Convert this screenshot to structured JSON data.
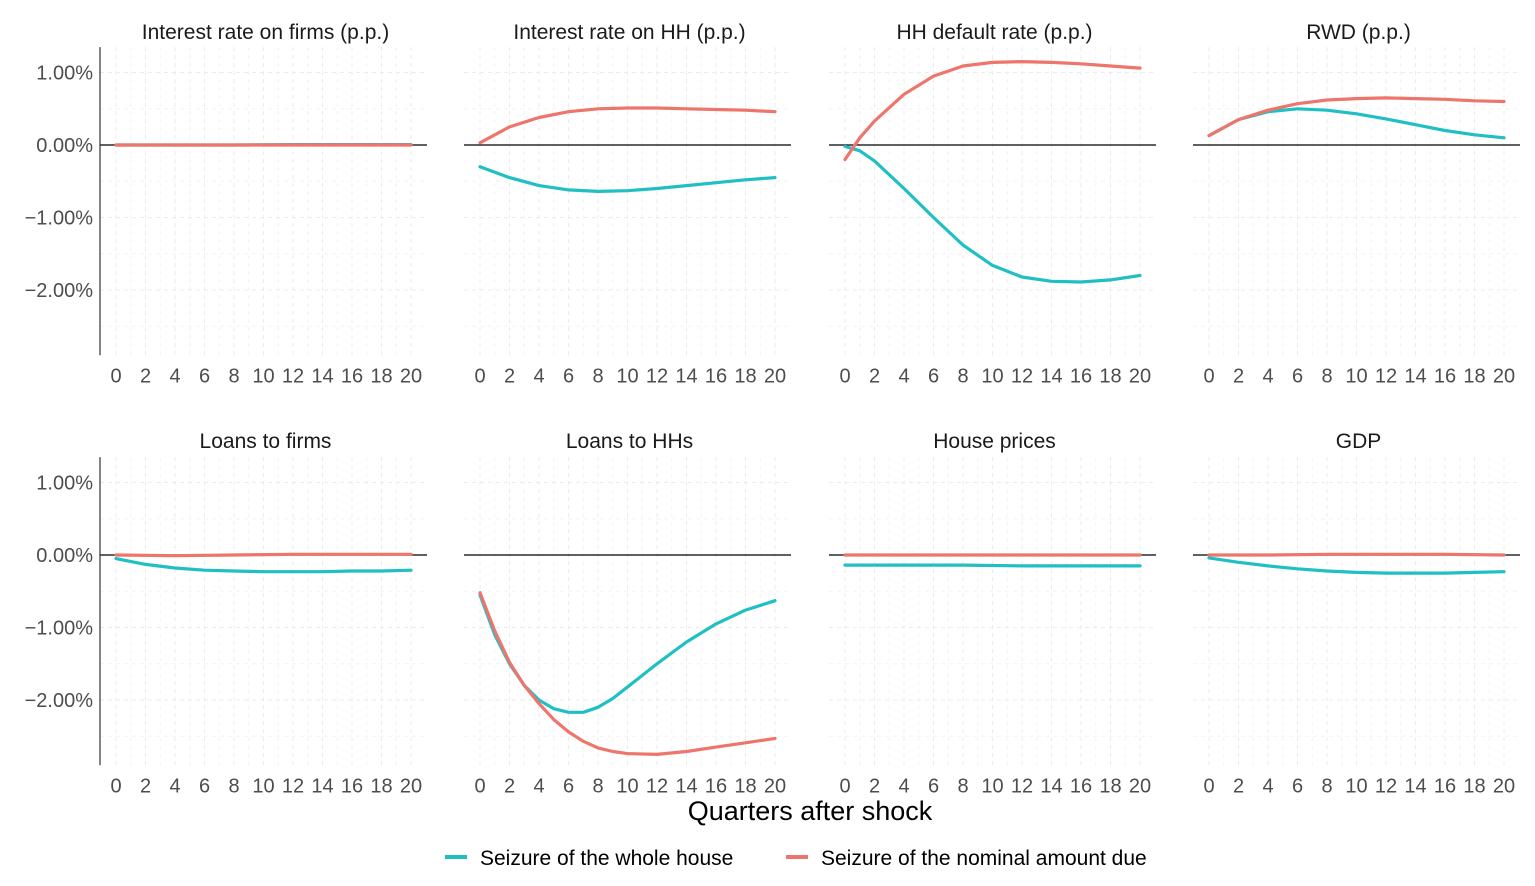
{
  "chart_data": {
    "type": "line",
    "xlabel": "Quarters after shock",
    "x_ticks": [
      "0",
      "2",
      "4",
      "6",
      "8",
      "10",
      "12",
      "14",
      "16",
      "18",
      "20"
    ],
    "xlim": [
      0,
      20
    ],
    "ylim": [
      -2.9,
      1.35
    ],
    "y_ticks": [
      1.0,
      0.0,
      -1.0,
      -2.0
    ],
    "y_tick_labels": [
      "1.00%",
      "0.00%",
      "−1.00%",
      "−2.00%"
    ],
    "legend": {
      "position": "bottom",
      "entries": [
        {
          "name": "Seizure of the whole house",
          "color": "#1fbfc4"
        },
        {
          "name": "Seizure of the nominal amount due",
          "color": "#ee756b"
        }
      ]
    },
    "panels": [
      {
        "title": "Interest rate on firms (p.p.)",
        "series": [
          {
            "name": "Seizure of the whole house",
            "x": [
              0,
              4,
              8,
              12,
              16,
              20
            ],
            "values": [
              0,
              0,
              0,
              0.005,
              0.005,
              0.005
            ]
          },
          {
            "name": "Seizure of the nominal amount due",
            "x": [
              0,
              4,
              8,
              12,
              16,
              20
            ],
            "values": [
              0,
              0,
              0,
              0,
              0,
              0
            ]
          }
        ]
      },
      {
        "title": "Interest rate on HH (p.p.)",
        "series": [
          {
            "name": "Seizure of the whole house",
            "x": [
              0,
              2,
              4,
              6,
              8,
              10,
              12,
              14,
              16,
              18,
              20
            ],
            "values": [
              -0.3,
              -0.45,
              -0.56,
              -0.62,
              -0.64,
              -0.63,
              -0.6,
              -0.56,
              -0.52,
              -0.48,
              -0.45
            ]
          },
          {
            "name": "Seizure of the nominal amount due",
            "x": [
              0,
              2,
              4,
              6,
              8,
              10,
              12,
              14,
              16,
              18,
              20
            ],
            "values": [
              0.03,
              0.25,
              0.38,
              0.46,
              0.5,
              0.51,
              0.51,
              0.5,
              0.49,
              0.48,
              0.46
            ]
          }
        ]
      },
      {
        "title": "HH default rate (p.p.)",
        "series": [
          {
            "name": "Seizure of the whole house",
            "x": [
              0,
              1,
              2,
              4,
              6,
              8,
              10,
              12,
              14,
              16,
              18,
              20
            ],
            "values": [
              -0.02,
              -0.08,
              -0.22,
              -0.6,
              -1.0,
              -1.38,
              -1.66,
              -1.82,
              -1.88,
              -1.89,
              -1.86,
              -1.8
            ]
          },
          {
            "name": "Seizure of the nominal amount due",
            "x": [
              0,
              1,
              2,
              4,
              6,
              8,
              10,
              12,
              14,
              16,
              18,
              20
            ],
            "values": [
              -0.2,
              0.1,
              0.33,
              0.7,
              0.95,
              1.09,
              1.14,
              1.15,
              1.14,
              1.12,
              1.09,
              1.06
            ]
          }
        ]
      },
      {
        "title": "RWD (p.p.)",
        "series": [
          {
            "name": "Seizure of the whole house",
            "x": [
              0,
              2,
              4,
              6,
              8,
              10,
              12,
              14,
              16,
              18,
              20
            ],
            "values": [
              0.13,
              0.35,
              0.46,
              0.5,
              0.48,
              0.43,
              0.36,
              0.28,
              0.2,
              0.14,
              0.1
            ]
          },
          {
            "name": "Seizure of the nominal amount due",
            "x": [
              0,
              2,
              4,
              6,
              8,
              10,
              12,
              14,
              16,
              18,
              20
            ],
            "values": [
              0.13,
              0.35,
              0.48,
              0.57,
              0.62,
              0.64,
              0.65,
              0.64,
              0.63,
              0.61,
              0.6
            ]
          }
        ]
      },
      {
        "title": "Loans to firms",
        "series": [
          {
            "name": "Seizure of the whole house",
            "x": [
              0,
              2,
              4,
              6,
              8,
              10,
              12,
              14,
              16,
              18,
              20
            ],
            "values": [
              -0.05,
              -0.13,
              -0.18,
              -0.21,
              -0.22,
              -0.23,
              -0.23,
              -0.23,
              -0.22,
              -0.22,
              -0.21
            ]
          },
          {
            "name": "Seizure of the nominal amount due",
            "x": [
              0,
              4,
              8,
              12,
              16,
              20
            ],
            "values": [
              0,
              -0.01,
              0,
              0.01,
              0.01,
              0.01
            ]
          }
        ]
      },
      {
        "title": "Loans to HHs",
        "series": [
          {
            "name": "Seizure of the whole house",
            "x": [
              0,
              1,
              2,
              3,
              4,
              5,
              6,
              7,
              8,
              9,
              10,
              12,
              14,
              16,
              18,
              20
            ],
            "values": [
              -0.55,
              -1.1,
              -1.5,
              -1.8,
              -2.0,
              -2.12,
              -2.17,
              -2.17,
              -2.1,
              -1.98,
              -1.82,
              -1.5,
              -1.2,
              -0.95,
              -0.76,
              -0.63
            ]
          },
          {
            "name": "Seizure of the nominal amount due",
            "x": [
              0,
              1,
              2,
              3,
              4,
              5,
              6,
              7,
              8,
              9,
              10,
              12,
              14,
              16,
              18,
              20
            ],
            "values": [
              -0.52,
              -1.05,
              -1.48,
              -1.8,
              -2.05,
              -2.27,
              -2.44,
              -2.57,
              -2.66,
              -2.71,
              -2.74,
              -2.75,
              -2.71,
              -2.65,
              -2.59,
              -2.53
            ]
          }
        ]
      },
      {
        "title": "House prices",
        "series": [
          {
            "name": "Seizure of the whole house",
            "x": [
              0,
              4,
              8,
              12,
              16,
              20
            ],
            "values": [
              -0.14,
              -0.14,
              -0.14,
              -0.15,
              -0.15,
              -0.15
            ]
          },
          {
            "name": "Seizure of the nominal amount due",
            "x": [
              0,
              4,
              8,
              12,
              16,
              20
            ],
            "values": [
              0,
              0,
              0,
              0,
              0,
              0
            ]
          }
        ]
      },
      {
        "title": "GDP",
        "series": [
          {
            "name": "Seizure of the whole house",
            "x": [
              0,
              2,
              4,
              6,
              8,
              10,
              12,
              14,
              16,
              18,
              20
            ],
            "values": [
              -0.04,
              -0.1,
              -0.15,
              -0.19,
              -0.22,
              -0.24,
              -0.25,
              -0.25,
              -0.25,
              -0.24,
              -0.23
            ]
          },
          {
            "name": "Seizure of the nominal amount due",
            "x": [
              0,
              4,
              8,
              12,
              16,
              20
            ],
            "values": [
              0,
              0,
              0.01,
              0.01,
              0.01,
              0
            ]
          }
        ]
      }
    ]
  }
}
